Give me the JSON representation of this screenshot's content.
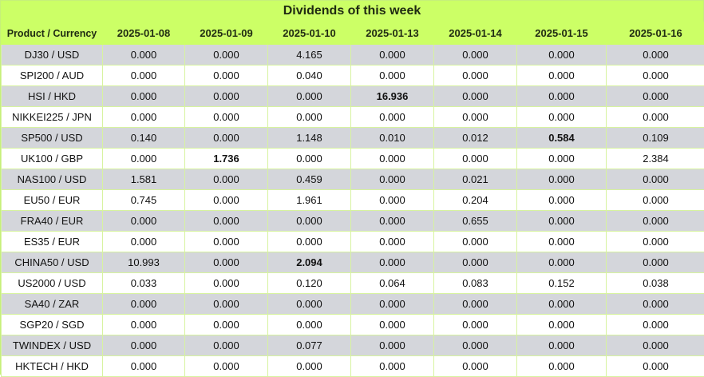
{
  "title": "Dividends of this week",
  "header": {
    "product_label": "Product / Currency",
    "dates": [
      "2025-01-08",
      "2025-01-09",
      "2025-01-10",
      "2025-01-13",
      "2025-01-14",
      "2025-01-15",
      "2025-01-16"
    ]
  },
  "rows": [
    {
      "product": "DJ30 / USD",
      "values": [
        "0.000",
        "0.000",
        "4.165",
        "0.000",
        "0.000",
        "0.000",
        "0.000"
      ],
      "bold": []
    },
    {
      "product": "SPI200 / AUD",
      "values": [
        "0.000",
        "0.000",
        "0.040",
        "0.000",
        "0.000",
        "0.000",
        "0.000"
      ],
      "bold": []
    },
    {
      "product": "HSI / HKD",
      "values": [
        "0.000",
        "0.000",
        "0.000",
        "16.936",
        "0.000",
        "0.000",
        "0.000"
      ],
      "bold": [
        3
      ]
    },
    {
      "product": "NIKKEI225 / JPN",
      "values": [
        "0.000",
        "0.000",
        "0.000",
        "0.000",
        "0.000",
        "0.000",
        "0.000"
      ],
      "bold": []
    },
    {
      "product": "SP500 / USD",
      "values": [
        "0.140",
        "0.000",
        "1.148",
        "0.010",
        "0.012",
        "0.584",
        "0.109"
      ],
      "bold": [
        5
      ]
    },
    {
      "product": "UK100 / GBP",
      "values": [
        "0.000",
        "1.736",
        "0.000",
        "0.000",
        "0.000",
        "0.000",
        "2.384"
      ],
      "bold": [
        1
      ]
    },
    {
      "product": "NAS100 / USD",
      "values": [
        "1.581",
        "0.000",
        "0.459",
        "0.000",
        "0.021",
        "0.000",
        "0.000"
      ],
      "bold": []
    },
    {
      "product": "EU50 / EUR",
      "values": [
        "0.745",
        "0.000",
        "1.961",
        "0.000",
        "0.204",
        "0.000",
        "0.000"
      ],
      "bold": []
    },
    {
      "product": "FRA40 / EUR",
      "values": [
        "0.000",
        "0.000",
        "0.000",
        "0.000",
        "0.655",
        "0.000",
        "0.000"
      ],
      "bold": []
    },
    {
      "product": "ES35 / EUR",
      "values": [
        "0.000",
        "0.000",
        "0.000",
        "0.000",
        "0.000",
        "0.000",
        "0.000"
      ],
      "bold": []
    },
    {
      "product": "CHINA50 / USD",
      "values": [
        "10.993",
        "0.000",
        "2.094",
        "0.000",
        "0.000",
        "0.000",
        "0.000"
      ],
      "bold": [
        2
      ]
    },
    {
      "product": "US2000 / USD",
      "values": [
        "0.033",
        "0.000",
        "0.120",
        "0.064",
        "0.083",
        "0.152",
        "0.038"
      ],
      "bold": []
    },
    {
      "product": "SA40 / ZAR",
      "values": [
        "0.000",
        "0.000",
        "0.000",
        "0.000",
        "0.000",
        "0.000",
        "0.000"
      ],
      "bold": []
    },
    {
      "product": "SGP20 / SGD",
      "values": [
        "0.000",
        "0.000",
        "0.000",
        "0.000",
        "0.000",
        "0.000",
        "0.000"
      ],
      "bold": []
    },
    {
      "product": "TWINDEX / USD",
      "values": [
        "0.000",
        "0.000",
        "0.077",
        "0.000",
        "0.000",
        "0.000",
        "0.000"
      ],
      "bold": []
    },
    {
      "product": "HKTECH / HKD",
      "values": [
        "0.000",
        "0.000",
        "0.000",
        "0.000",
        "0.000",
        "0.000",
        "0.000"
      ],
      "bold": []
    }
  ]
}
